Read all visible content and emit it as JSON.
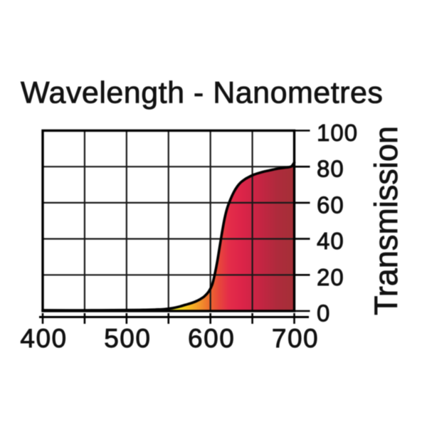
{
  "chart_data": {
    "type": "area",
    "title": "Wavelength - Nanometres",
    "xlabel": "",
    "ylabel": "Transmission",
    "x_unit": "nanometres",
    "xlim": [
      400,
      700
    ],
    "ylim": [
      0,
      100
    ],
    "x_grid_step": 50,
    "y_grid_step": 20,
    "x_tick_labels": [
      400,
      500,
      600,
      700
    ],
    "y_tick_labels": [
      0,
      20,
      40,
      60,
      80,
      100
    ],
    "grid": true,
    "legend": false,
    "series": [
      {
        "name": "transmission-curve",
        "points": [
          [
            400,
            0.4
          ],
          [
            450,
            0.4
          ],
          [
            500,
            0.5
          ],
          [
            520,
            0.6
          ],
          [
            535,
            0.8
          ],
          [
            545,
            1.0
          ],
          [
            555,
            1.6
          ],
          [
            562,
            2.3
          ],
          [
            570,
            3.4
          ],
          [
            576,
            4.2
          ],
          [
            582,
            5.2
          ],
          [
            588,
            6.6
          ],
          [
            593,
            8.2
          ],
          [
            598,
            10.8
          ],
          [
            602,
            14.5
          ],
          [
            605,
            20.0
          ],
          [
            608,
            27.0
          ],
          [
            611,
            35.5
          ],
          [
            614,
            44.0
          ],
          [
            617,
            51.5
          ],
          [
            620,
            57.0
          ],
          [
            624,
            62.0
          ],
          [
            628,
            66.0
          ],
          [
            632,
            69.0
          ],
          [
            636,
            71.2
          ],
          [
            641,
            73.0
          ],
          [
            646,
            74.3
          ],
          [
            652,
            75.6
          ],
          [
            658,
            76.5
          ],
          [
            665,
            77.4
          ],
          [
            672,
            78.1
          ],
          [
            680,
            78.9
          ],
          [
            688,
            79.4
          ],
          [
            694,
            79.8
          ],
          [
            697,
            80.3
          ],
          [
            700,
            82.3
          ]
        ]
      }
    ],
    "fill_gradient": {
      "direction": "horizontal",
      "stops_by_wavelength": [
        [
          560,
          "#f8ec1e"
        ],
        [
          575,
          "#f7bb22"
        ],
        [
          588,
          "#f2922b"
        ],
        [
          600,
          "#ed672f"
        ],
        [
          610,
          "#e8473b"
        ],
        [
          622,
          "#e42d49"
        ],
        [
          635,
          "#de2549"
        ],
        [
          650,
          "#d02446"
        ],
        [
          665,
          "#bf2641"
        ],
        [
          680,
          "#ae2b3c"
        ],
        [
          700,
          "#a43037"
        ]
      ]
    },
    "colors": {
      "curve": "#000000",
      "grid": "#1a1a1a",
      "frame": "#000000",
      "text": "#111111",
      "background": "#ffffff"
    }
  },
  "layout_note": "transmission spectrum chart"
}
